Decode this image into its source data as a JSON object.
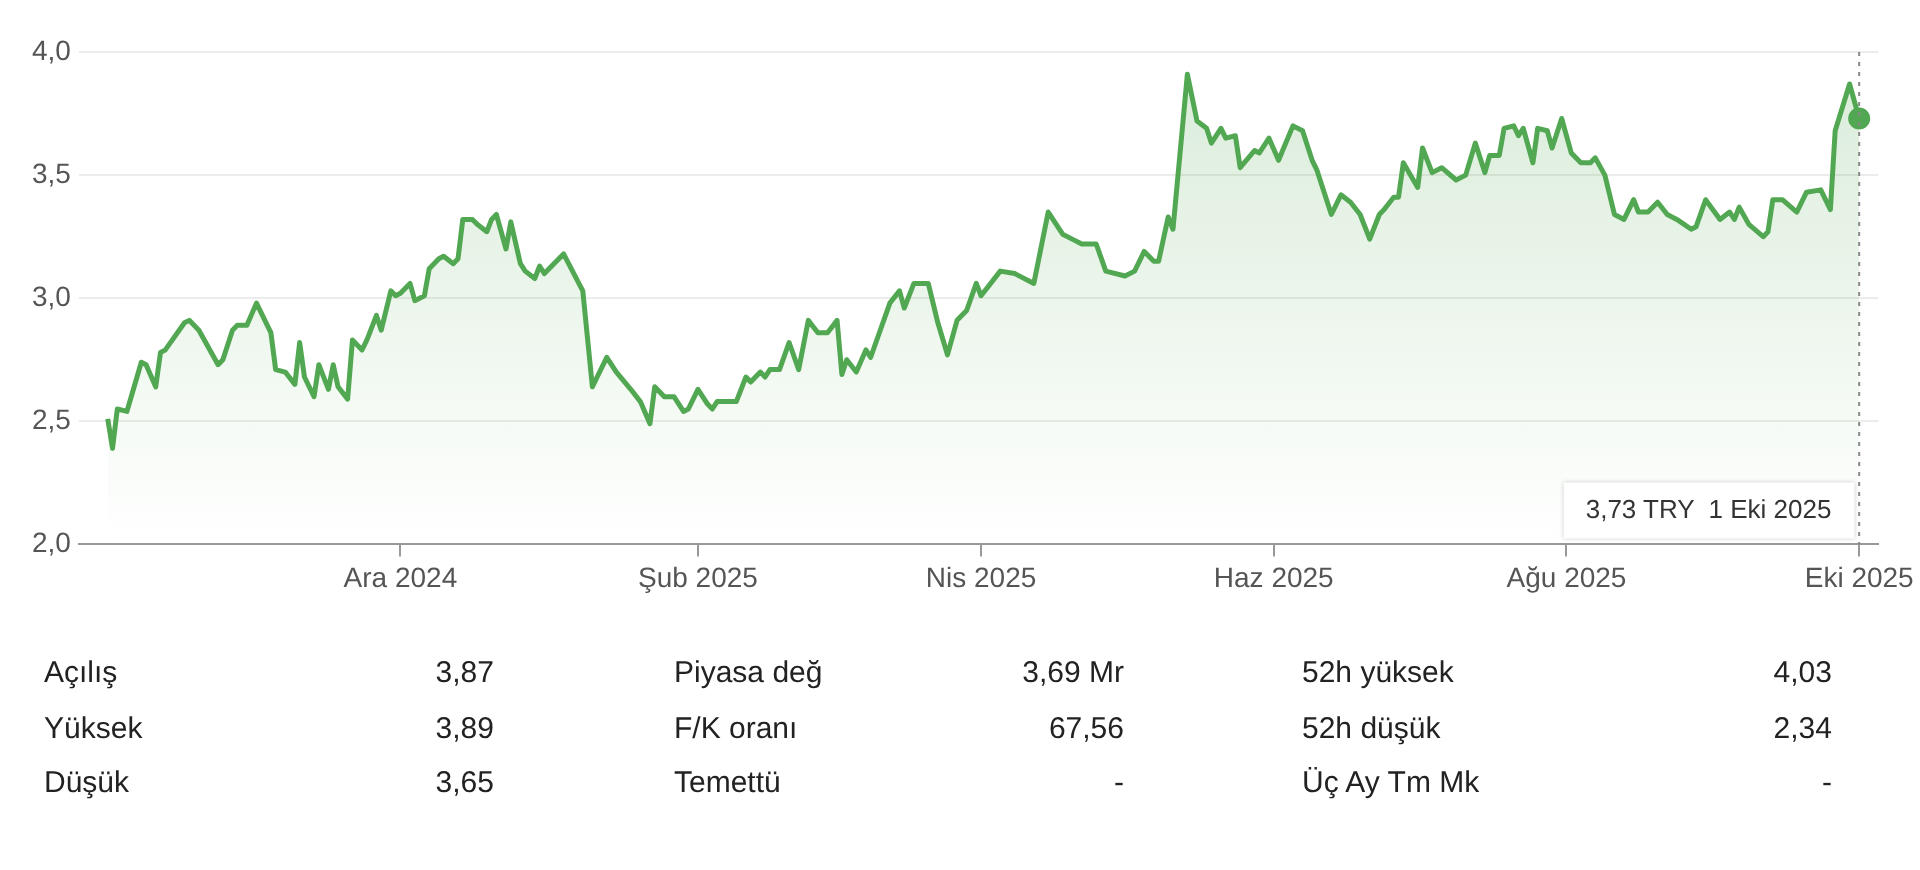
{
  "chart_data": {
    "type": "area",
    "grid": "y",
    "legend": false,
    "marker": "none",
    "line_style": "solid",
    "xlim": [
      "2024-09-25",
      "2025-10-05"
    ],
    "xticks": [
      {
        "value": "2024-12-01",
        "label": "Ara 2024"
      },
      {
        "value": "2025-02-01",
        "label": "Şub 2025"
      },
      {
        "value": "2025-04-01",
        "label": "Nis 2025"
      },
      {
        "value": "2025-06-01",
        "label": "Haz 2025"
      },
      {
        "value": "2025-08-01",
        "label": "Ağu 2025"
      },
      {
        "value": "2025-10-01",
        "label": "Eki 2025"
      }
    ],
    "ylim": [
      2,
      4
    ],
    "yticks": [
      {
        "value": 2,
        "label": "2,0"
      },
      {
        "value": 2.5,
        "label": "2,5"
      },
      {
        "value": 3,
        "label": "3,0"
      },
      {
        "value": 3.5,
        "label": "3,5"
      },
      {
        "value": 4,
        "label": "4,0"
      }
    ],
    "x": [
      "2024-10-01",
      "2024-10-02",
      "2024-10-03",
      "2024-10-05",
      "2024-10-08",
      "2024-10-09",
      "2024-10-11",
      "2024-10-12",
      "2024-10-13",
      "2024-10-17",
      "2024-10-18",
      "2024-10-20",
      "2024-10-24",
      "2024-10-25",
      "2024-10-27",
      "2024-10-28",
      "2024-10-30",
      "2024-11-01",
      "2024-11-04",
      "2024-11-05",
      "2024-11-07",
      "2024-11-09",
      "2024-11-10",
      "2024-11-11",
      "2024-11-13",
      "2024-11-14",
      "2024-11-16",
      "2024-11-17",
      "2024-11-18",
      "2024-11-20",
      "2024-11-21",
      "2024-11-23",
      "2024-11-24",
      "2024-11-26",
      "2024-11-27",
      "2024-11-29",
      "2024-11-30",
      "2024-12-01",
      "2024-12-03",
      "2024-12-04",
      "2024-12-06",
      "2024-12-07",
      "2024-12-09",
      "2024-12-10",
      "2024-12-12",
      "2024-12-13",
      "2024-12-14",
      "2024-12-16",
      "2024-12-17",
      "2024-12-19",
      "2024-12-20",
      "2024-12-21",
      "2024-12-23",
      "2024-12-24",
      "2024-12-26",
      "2024-12-27",
      "2024-12-29",
      "2024-12-30",
      "2024-12-31",
      "2025-01-04",
      "2025-01-08",
      "2025-01-10",
      "2025-01-11",
      "2025-01-13",
      "2025-01-15",
      "2025-01-18",
      "2025-01-20",
      "2025-01-22",
      "2025-01-23",
      "2025-01-25",
      "2025-01-27",
      "2025-01-29",
      "2025-01-30",
      "2025-02-01",
      "2025-02-03",
      "2025-02-04",
      "2025-02-05",
      "2025-02-09",
      "2025-02-11",
      "2025-02-12",
      "2025-02-14",
      "2025-02-15",
      "2025-02-16",
      "2025-02-18",
      "2025-02-20",
      "2025-02-22",
      "2025-02-24",
      "2025-02-26",
      "2025-02-28",
      "2025-03-02",
      "2025-03-03",
      "2025-03-04",
      "2025-03-06",
      "2025-03-08",
      "2025-03-09",
      "2025-03-13",
      "2025-03-15",
      "2025-03-16",
      "2025-03-18",
      "2025-03-21",
      "2025-03-23",
      "2025-03-25",
      "2025-03-27",
      "2025-03-29",
      "2025-03-31",
      "2025-04-01",
      "2025-04-05",
      "2025-04-08",
      "2025-04-12",
      "2025-04-15",
      "2025-04-18",
      "2025-04-20",
      "2025-04-22",
      "2025-04-25",
      "2025-04-27",
      "2025-05-01",
      "2025-05-03",
      "2025-05-05",
      "2025-05-07",
      "2025-05-08",
      "2025-05-10",
      "2025-05-11",
      "2025-05-14",
      "2025-05-16",
      "2025-05-18",
      "2025-05-19",
      "2025-05-21",
      "2025-05-22",
      "2025-05-24",
      "2025-05-25",
      "2025-05-28",
      "2025-05-29",
      "2025-05-31",
      "2025-06-02",
      "2025-06-05",
      "2025-06-07",
      "2025-06-09",
      "2025-06-10",
      "2025-06-13",
      "2025-06-15",
      "2025-06-17",
      "2025-06-19",
      "2025-06-21",
      "2025-06-23",
      "2025-06-24",
      "2025-06-26",
      "2025-06-27",
      "2025-06-28",
      "2025-07-01",
      "2025-07-02",
      "2025-07-04",
      "2025-07-06",
      "2025-07-09",
      "2025-07-11",
      "2025-07-13",
      "2025-07-15",
      "2025-07-16",
      "2025-07-18",
      "2025-07-19",
      "2025-07-21",
      "2025-07-22",
      "2025-07-23",
      "2025-07-25",
      "2025-07-26",
      "2025-07-28",
      "2025-07-29",
      "2025-07-31",
      "2025-08-02",
      "2025-08-04",
      "2025-08-06",
      "2025-08-07",
      "2025-08-09",
      "2025-08-11",
      "2025-08-13",
      "2025-08-15",
      "2025-08-16",
      "2025-08-18",
      "2025-08-20",
      "2025-08-22",
      "2025-08-24",
      "2025-08-27",
      "2025-08-28",
      "2025-08-30",
      "2025-09-02",
      "2025-09-04",
      "2025-09-05",
      "2025-09-06",
      "2025-09-08",
      "2025-09-11",
      "2025-09-12",
      "2025-09-13",
      "2025-09-15",
      "2025-09-18",
      "2025-09-20",
      "2025-09-23",
      "2025-09-25",
      "2025-09-26",
      "2025-09-29",
      "2025-10-01"
    ],
    "series": [
      {
        "color": "#52a852",
        "values": [
          2.51,
          2.39,
          2.55,
          2.54,
          2.74,
          2.73,
          2.64,
          2.78,
          2.79,
          2.9,
          2.91,
          2.87,
          2.73,
          2.75,
          2.87,
          2.89,
          2.89,
          2.98,
          2.86,
          2.71,
          2.7,
          2.65,
          2.82,
          2.68,
          2.6,
          2.73,
          2.63,
          2.73,
          2.64,
          2.59,
          2.83,
          2.79,
          2.83,
          2.93,
          2.87,
          3.03,
          3.01,
          3.02,
          3.06,
          2.99,
          3.01,
          3.12,
          3.16,
          3.17,
          3.14,
          3.16,
          3.32,
          3.32,
          3.3,
          3.27,
          3.32,
          3.34,
          3.2,
          3.31,
          3.14,
          3.11,
          3.08,
          3.13,
          3.1,
          3.18,
          3.03,
          2.64,
          2.68,
          2.76,
          2.7,
          2.63,
          2.58,
          2.49,
          2.64,
          2.6,
          2.6,
          2.54,
          2.55,
          2.63,
          2.57,
          2.55,
          2.58,
          2.58,
          2.68,
          2.66,
          2.7,
          2.68,
          2.71,
          2.71,
          2.82,
          2.71,
          2.91,
          2.86,
          2.86,
          2.91,
          2.69,
          2.75,
          2.7,
          2.79,
          2.76,
          2.98,
          3.03,
          2.96,
          3.06,
          3.06,
          2.9,
          2.77,
          2.91,
          2.95,
          3.06,
          3.01,
          3.11,
          3.1,
          3.06,
          3.35,
          3.26,
          3.24,
          3.22,
          3.22,
          3.11,
          3.09,
          3.11,
          3.19,
          3.15,
          3.15,
          3.33,
          3.28,
          3.91,
          3.72,
          3.69,
          3.63,
          3.69,
          3.65,
          3.66,
          3.53,
          3.6,
          3.59,
          3.65,
          3.56,
          3.7,
          3.68,
          3.56,
          3.52,
          3.34,
          3.42,
          3.39,
          3.34,
          3.24,
          3.34,
          3.36,
          3.41,
          3.41,
          3.55,
          3.45,
          3.61,
          3.51,
          3.53,
          3.48,
          3.5,
          3.63,
          3.51,
          3.58,
          3.58,
          3.69,
          3.7,
          3.66,
          3.69,
          3.55,
          3.69,
          3.68,
          3.61,
          3.73,
          3.59,
          3.55,
          3.55,
          3.57,
          3.5,
          3.34,
          3.32,
          3.4,
          3.35,
          3.35,
          3.39,
          3.34,
          3.32,
          3.28,
          3.29,
          3.4,
          3.32,
          3.35,
          3.32,
          3.37,
          3.3,
          3.25,
          3.27,
          3.4,
          3.4,
          3.35,
          3.43,
          3.44,
          3.36,
          3.68,
          3.87,
          3.73
        ]
      },
      {
        "type": "scatter",
        "marker": "circle",
        "color": "#52a852",
        "x": [
          "2025-10-01"
        ],
        "values": [
          3.73
        ]
      }
    ],
    "ref_lines": [
      {
        "axis": "x",
        "value": "2025-10-01",
        "color": "#888888",
        "line_style": "dotted"
      }
    ],
    "annotations": [
      "3,73 TRY  1 Eki 2025",
      "Açılış",
      "3,87",
      "Piyasa değ",
      "3,69 Mr",
      "52h yüksek",
      "4,03",
      "Yüksek",
      "3,89",
      "F/K oranı",
      "67,56",
      "52h düşük",
      "2,34",
      "Düşük",
      "3,65",
      "Temettü",
      "-",
      "Üç Ay Tm Mk",
      "-"
    ]
  }
}
